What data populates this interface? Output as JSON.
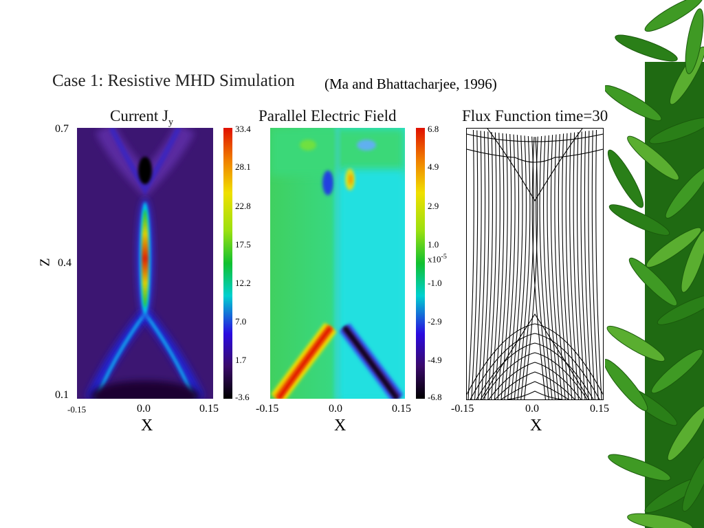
{
  "figure": {
    "title": "Case 1: Resistive MHD Simulation",
    "citation": "(Ma and Bhattacharjee, 1996)"
  },
  "panels": [
    {
      "title_main": "Current J",
      "title_sub": "y",
      "ylabel": "Z",
      "yticks": [
        "0.7",
        "0.4",
        "0.1"
      ],
      "xticks": [
        "-0.15",
        "0.0",
        "0.15"
      ],
      "xlabel": "X",
      "colorbar_ticks": [
        "33.4",
        "28.1",
        "22.8",
        "17.5",
        "12.2",
        "7.0",
        "1.7",
        "-3.6"
      ]
    },
    {
      "title": "Parallel Electric Field",
      "xticks": [
        "-0.15",
        "0.0",
        "0.15"
      ],
      "xlabel": "X",
      "colorbar_ticks": [
        "6.8",
        "4.9",
        "2.9",
        "1.0",
        "-1.0",
        "-2.9",
        "-4.9",
        "-6.8"
      ],
      "colorbar_scale": "x10",
      "colorbar_scale_exp": "-5"
    },
    {
      "title": "Flux Function time=30",
      "xticks": [
        "-0.15",
        "0.0",
        "0.15"
      ],
      "xlabel": "X"
    }
  ],
  "colors": {
    "background": "#ffffff",
    "jet_colormap": [
      "#000000",
      "#3a0a6a",
      "#2a0ae0",
      "#00c8f0",
      "#10c030",
      "#9ae010",
      "#f0e000",
      "#f08000",
      "#e01000"
    ],
    "leaf_green": "#2f8a1c"
  },
  "decoration": "bamboo-leaves"
}
